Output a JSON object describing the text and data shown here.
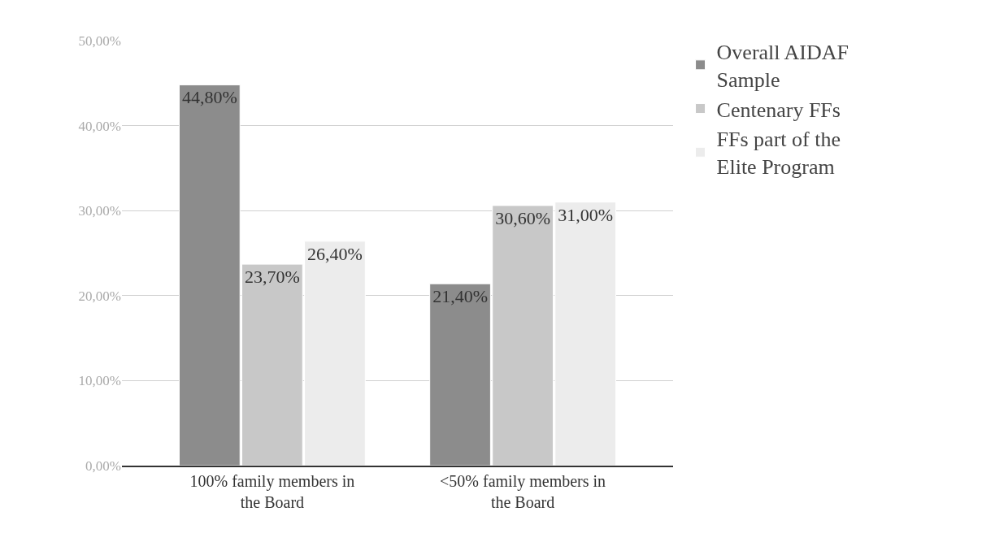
{
  "chart_data": {
    "type": "bar",
    "categories": [
      "100% family members in the Board",
      "<50% family members in the Board"
    ],
    "series": [
      {
        "name": "Overall AIDAF Sample",
        "color": "#8c8c8c",
        "values": [
          44.8,
          21.4
        ],
        "value_labels": [
          "44,80%",
          "21,40%"
        ]
      },
      {
        "name": "Centenary FFs",
        "color": "#c8c8c8",
        "values": [
          23.7,
          30.6
        ],
        "value_labels": [
          "23,70%",
          "30,60%"
        ]
      },
      {
        "name": "FFs part of the Elite Program",
        "color": "#ececec",
        "values": [
          26.4,
          31.0
        ],
        "value_labels": [
          "26,40%",
          "31,00%"
        ]
      }
    ],
    "ylim": [
      0,
      50
    ],
    "yticks": [
      {
        "value": 0,
        "label": "0,00%"
      },
      {
        "value": 10,
        "label": "10,00%"
      },
      {
        "value": 20,
        "label": "20,00%"
      },
      {
        "value": 30,
        "label": "30,00%"
      },
      {
        "value": 40,
        "label": "40,00%"
      },
      {
        "value": 50,
        "label": "50,00%"
      }
    ],
    "grid": "y",
    "legend": "top right"
  }
}
